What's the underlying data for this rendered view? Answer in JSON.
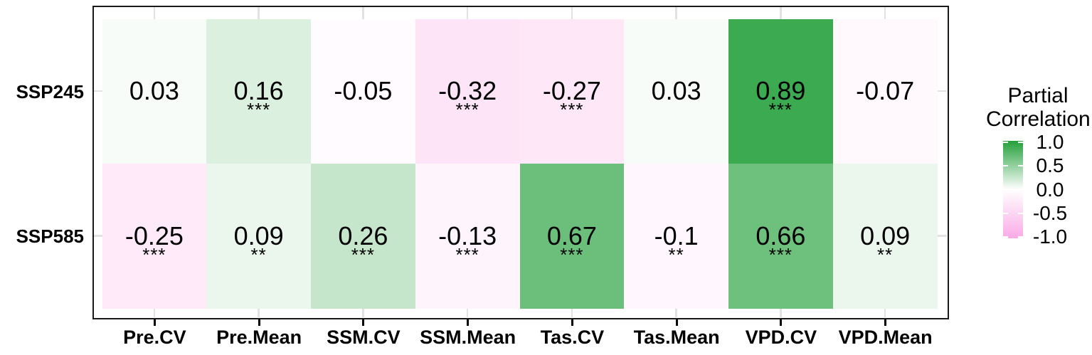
{
  "chart_data": {
    "type": "heatmap",
    "rows": [
      "SSP245",
      "SSP585"
    ],
    "columns": [
      "Pre.CV",
      "Pre.Mean",
      "SSM.CV",
      "SSM.Mean",
      "Tas.CV",
      "Tas.Mean",
      "VPD.CV",
      "VPD.Mean"
    ],
    "series": [
      {
        "name": "SSP245",
        "values": [
          0.03,
          0.16,
          -0.05,
          -0.32,
          -0.27,
          0.03,
          0.89,
          -0.07
        ],
        "labels": [
          "0.03",
          "0.16",
          "-0.05",
          "-0.32",
          "-0.27",
          "0.03",
          "0.89",
          "-0.07"
        ],
        "significance": [
          "",
          "***",
          "",
          "***",
          "***",
          "",
          "***",
          ""
        ]
      },
      {
        "name": "SSP585",
        "values": [
          -0.25,
          0.09,
          0.26,
          -0.13,
          0.67,
          -0.1,
          0.66,
          0.09
        ],
        "labels": [
          "-0.25",
          "0.09",
          "0.26",
          "-0.13",
          "0.67",
          "-0.1",
          "0.66",
          "0.09"
        ],
        "significance": [
          "***",
          "**",
          "***",
          "***",
          "***",
          "**",
          "***",
          "**"
        ]
      }
    ],
    "value_domain": [
      -1,
      1
    ],
    "legend": {
      "title_line1": "Partial",
      "title_line2": "Correlation",
      "ticks": [
        {
          "label": "1.0",
          "value": 1.0
        },
        {
          "label": "0.5",
          "value": 0.5
        },
        {
          "label": "0.0",
          "value": 0.0
        },
        {
          "label": "-0.5",
          "value": -0.5
        },
        {
          "label": "-1.0",
          "value": -1.0
        }
      ],
      "position": "right"
    },
    "colors": {
      "high": "#23a03a",
      "mid": "#ffffff",
      "low": "#faaae6",
      "panel_border": "#1a1a1a",
      "grid_stub": "#e2e2e2",
      "axis_tick": "#000000",
      "text": "#000000"
    },
    "grid": "major stubs visible in panel padding only"
  }
}
